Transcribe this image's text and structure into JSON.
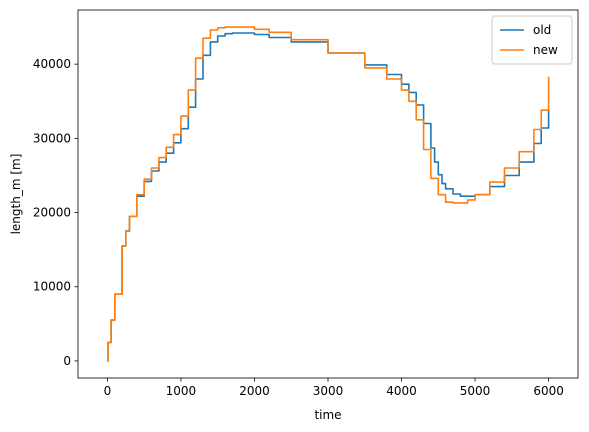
{
  "chart_data": {
    "type": "line",
    "xlabel": "time",
    "ylabel": "length_m [m]",
    "xlim": [
      -400,
      6400
    ],
    "ylim": [
      -2300,
      47300
    ],
    "xticks": [
      0,
      1000,
      2000,
      3000,
      4000,
      5000,
      6000
    ],
    "yticks": [
      0,
      10000,
      20000,
      30000,
      40000
    ],
    "legend_position": "top-right",
    "grid": false,
    "series": [
      {
        "name": "old",
        "color": "#1f77b4",
        "x": [
          0,
          10,
          50,
          100,
          200,
          250,
          300,
          400,
          500,
          600,
          700,
          800,
          900,
          1000,
          1100,
          1200,
          1300,
          1400,
          1500,
          1600,
          1700,
          2000,
          2200,
          2500,
          3000,
          3500,
          3800,
          4000,
          4100,
          4200,
          4300,
          4400,
          4450,
          4500,
          4550,
          4600,
          4700,
          4800,
          4900,
          5000,
          5200,
          5400,
          5600,
          5800,
          5900,
          6000
        ],
        "y": [
          0,
          2500,
          5500,
          9000,
          15500,
          17500,
          19500,
          22200,
          24200,
          25600,
          26800,
          28000,
          29400,
          31300,
          34200,
          38000,
          41200,
          43000,
          43800,
          44100,
          44200,
          44000,
          43600,
          43000,
          41500,
          39900,
          38600,
          37300,
          36200,
          34500,
          32000,
          28700,
          26800,
          25100,
          23900,
          23200,
          22500,
          22200,
          22200,
          22400,
          23500,
          25000,
          26800,
          29300,
          31400,
          34000
        ]
      },
      {
        "name": "new",
        "color": "#ff7f0e",
        "x": [
          0,
          10,
          50,
          100,
          200,
          250,
          300,
          400,
          500,
          600,
          700,
          800,
          900,
          1000,
          1100,
          1200,
          1300,
          1400,
          1500,
          1600,
          1700,
          1800,
          2000,
          2200,
          2500,
          3000,
          3500,
          3800,
          4000,
          4100,
          4200,
          4300,
          4400,
          4500,
          4600,
          4700,
          4800,
          4900,
          5000,
          5200,
          5400,
          5600,
          5800,
          5900,
          6000
        ],
        "y": [
          0,
          2500,
          5500,
          9000,
          15500,
          17500,
          19500,
          22400,
          24500,
          26000,
          27400,
          28800,
          30500,
          33000,
          36500,
          40800,
          43500,
          44600,
          44900,
          45000,
          45000,
          45000,
          44700,
          44300,
          43300,
          41500,
          39500,
          38000,
          36500,
          35000,
          32500,
          28500,
          24600,
          22400,
          21400,
          21300,
          21300,
          21700,
          22400,
          24100,
          26000,
          28200,
          31200,
          33800,
          38300
        ]
      }
    ]
  }
}
